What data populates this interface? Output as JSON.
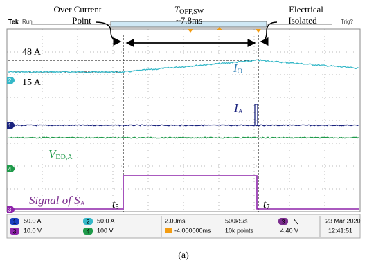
{
  "annotations": {
    "over_current": [
      "Over Current",
      "Point"
    ],
    "toff": {
      "symbol": "T",
      "subscript": "OFF,SW",
      "value": "~7.8ms"
    },
    "isolated": [
      "Electrical",
      "Isolated"
    ]
  },
  "scope": {
    "brand": "Tek",
    "state": "Run",
    "trigger": "Trig?"
  },
  "labels": {
    "level_high": "48 A",
    "level_low": "15 A",
    "io": {
      "symbol": "I",
      "subscript": "O"
    },
    "ia": {
      "symbol": "I",
      "subscript": "A"
    },
    "vdd": {
      "symbol": "V",
      "subscript": "DD,A"
    },
    "signal": {
      "symbol": "Signal of S",
      "subscript": "A"
    },
    "t5": {
      "symbol": "t",
      "subscript": "5"
    },
    "t7": {
      "symbol": "t",
      "subscript": "7"
    }
  },
  "channel_markers": [
    "2",
    "1",
    "4",
    "3"
  ],
  "status": {
    "channels": [
      {
        "id": "1",
        "scale": "50.0 A"
      },
      {
        "id": "2",
        "scale": "50.0 A"
      },
      {
        "id": "3",
        "scale": "10.0 V"
      },
      {
        "id": "4",
        "scale": "100 V"
      }
    ],
    "timebase": "2.00ms",
    "trigger_pos": "-4.000000ms",
    "sample_rate": "500kS/s",
    "record": "10k points",
    "trigger_source": "3",
    "trigger_level": "4.40 V",
    "date": "23 Mar 2020",
    "time": "12:41:51"
  },
  "caption": "(a)"
}
